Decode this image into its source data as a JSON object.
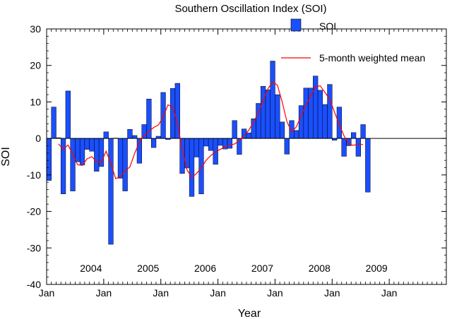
{
  "chart_data": {
    "type": "bar",
    "title": "Southern Oscillation Index (SOI)",
    "xlabel": "Year",
    "ylabel": "SOI",
    "ylim": [
      -40,
      30
    ],
    "yticks": [
      -40,
      -30,
      -20,
      -10,
      0,
      10,
      20,
      30
    ],
    "xlim": [
      "2003-01",
      "2009-12"
    ],
    "xtick_labels": [
      "Jan",
      "Jan",
      "Jan",
      "Jan",
      "Jan",
      "Jan",
      "Jan"
    ],
    "year_labels": [
      "2004",
      "2005",
      "2006",
      "2007",
      "2008",
      "2009"
    ],
    "grid": false,
    "legend": {
      "position": "top-right"
    },
    "colors": {
      "bars": "#1a4fff",
      "mean_line": "#ff0000"
    },
    "series": [
      {
        "name": "SOI",
        "kind": "bar",
        "start": "2003-01",
        "values": [
          -11.5,
          8.6,
          0.2,
          -15.2,
          13.0,
          -14.4,
          -6.4,
          -7.3,
          -3.0,
          -3.5,
          -9.0,
          -7.7,
          1.8,
          -29.0,
          0.1,
          -10.9,
          -14.4,
          2.5,
          0.8,
          -6.8,
          3.8,
          10.8,
          -2.5,
          0.6,
          12.6,
          -0.3,
          13.7,
          15.1,
          -9.6,
          -8.1,
          -15.9,
          -5.1,
          -15.2,
          -2.1,
          -3.3,
          -7.1,
          -1.9,
          -2.9,
          -2.7,
          4.9,
          -4.4,
          2.6,
          1.5,
          5.4,
          9.6,
          14.3,
          13.3,
          21.2,
          12.0,
          4.5,
          -4.3,
          4.9,
          2.2,
          9.0,
          13.8,
          13.8,
          17.1,
          13.2,
          9.3,
          14.8,
          -0.5,
          8.6,
          -4.9,
          -2.0,
          1.6,
          -4.9,
          3.8,
          -14.7
        ]
      },
      {
        "name": "5-month weighted mean",
        "kind": "line",
        "start": "2003-03",
        "values": [
          -1.5,
          -3.0,
          -1.8,
          -4.3,
          -7.2,
          -7.4,
          -5.6,
          -5.0,
          -6.4,
          -6.5,
          -3.5,
          -6.8,
          -11.0,
          -10.5,
          -8.9,
          -7.8,
          -4.1,
          -1.0,
          0.8,
          1.9,
          3.0,
          3.7,
          5.9,
          9.2,
          8.6,
          4.1,
          -3.0,
          -8.6,
          -10.7,
          -9.6,
          -8.1,
          -6.0,
          -4.7,
          -3.6,
          -3.0,
          -2.2,
          -1.9,
          -1.5,
          -0.6,
          0.7,
          2.3,
          4.5,
          7.1,
          10.4,
          13.6,
          15.5,
          14.6,
          10.0,
          4.6,
          1.8,
          3.2,
          6.3,
          9.1,
          11.7,
          14.2,
          14.4,
          12.6,
          10.7,
          7.2,
          3.8,
          0.7,
          -1.5,
          -1.9,
          -1.5,
          -1.7
        ]
      }
    ]
  }
}
